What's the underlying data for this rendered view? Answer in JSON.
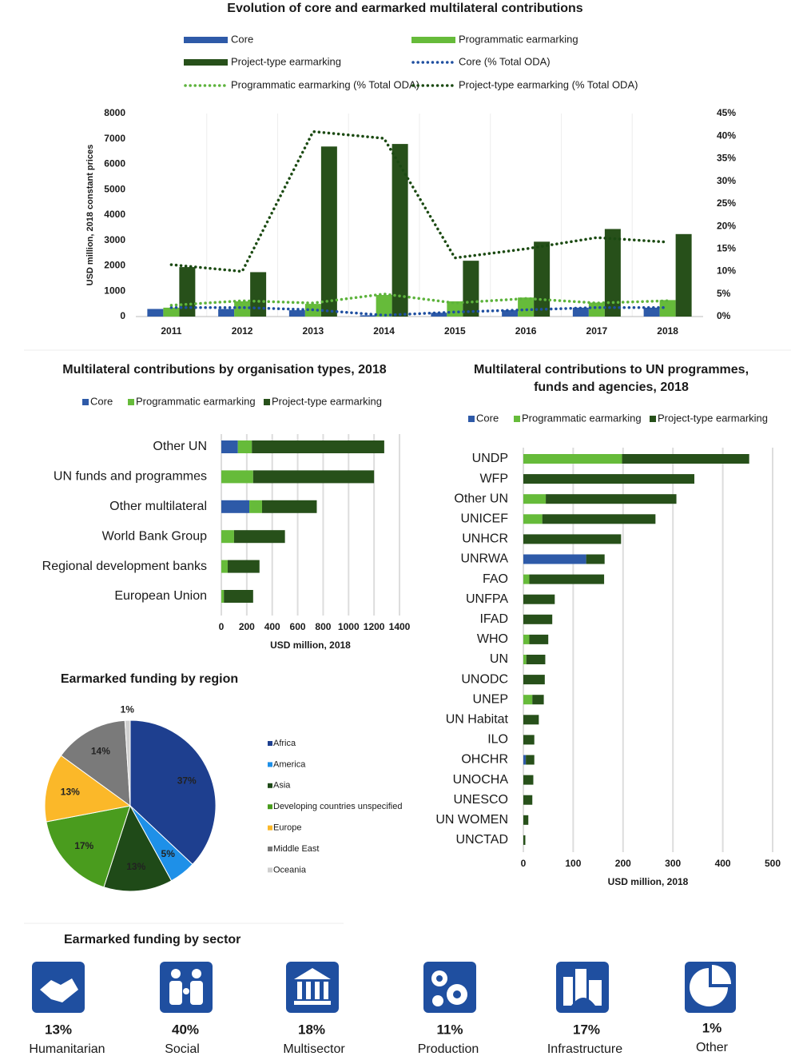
{
  "chart_data": [
    {
      "type": "bar",
      "title": "Evolution of core and earmarked multilateral contributions",
      "y_label": "USD million, 2018 constant prices",
      "categories": [
        "2011",
        "2012",
        "2013",
        "2014",
        "2015",
        "2016",
        "2017",
        "2018"
      ],
      "series": [
        {
          "name": "Core",
          "type": "bar",
          "color": "#2e5aa8",
          "values": [
            300,
            300,
            250,
            50,
            150,
            250,
            350,
            350
          ]
        },
        {
          "name": "Programmatic earmarking",
          "type": "bar",
          "color": "#66bb3a",
          "values": [
            350,
            600,
            500,
            850,
            600,
            750,
            550,
            650
          ]
        },
        {
          "name": "Project-type earmarking",
          "type": "bar",
          "color": "#27501a",
          "values": [
            1950,
            1750,
            6700,
            6800,
            2200,
            2950,
            3450,
            3250
          ]
        },
        {
          "name": "Core (% Total ODA)",
          "type": "line",
          "axis": "y2",
          "color": "#1f4fa0",
          "values": [
            2,
            2,
            1.5,
            0.3,
            1,
            1.5,
            2,
            2
          ]
        },
        {
          "name": "Programmatic earmarking (% Total ODA)",
          "type": "line",
          "axis": "y2",
          "color": "#5db33c",
          "values": [
            2.5,
            3.5,
            3,
            5,
            3,
            4,
            3,
            3.5
          ]
        },
        {
          "name": "Project-type earmarking (% Total ODA)",
          "type": "line",
          "axis": "y2",
          "color": "#1b4a12",
          "values": [
            11.5,
            10,
            41,
            39.5,
            13,
            15,
            17.5,
            16.5
          ]
        }
      ],
      "ylim": [
        0,
        8000
      ],
      "yticks": [
        0,
        1000,
        2000,
        3000,
        4000,
        5000,
        6000,
        7000,
        8000
      ],
      "y2lim": [
        0,
        45
      ],
      "y2ticks": [
        {
          "value": 0,
          "label": "0%"
        },
        {
          "value": 5,
          "label": "5%"
        },
        {
          "value": 10,
          "label": "10%"
        },
        {
          "value": 15,
          "label": "15%"
        },
        {
          "value": 20,
          "label": "20%"
        },
        {
          "value": 25,
          "label": "25%"
        },
        {
          "value": 30,
          "label": "30%"
        },
        {
          "value": 35,
          "label": "35%"
        },
        {
          "value": 40,
          "label": "40%"
        },
        {
          "value": 45,
          "label": "45%"
        }
      ],
      "grid": false
    },
    {
      "type": "stacked-barh",
      "title": "Multilateral contributions by organisation types, 2018",
      "x_label": "USD million, 2018",
      "categories": [
        "Other UN",
        "UN funds and programmes",
        "Other multilateral",
        "World Bank Group",
        "Regional development banks",
        "European Union"
      ],
      "series": [
        {
          "name": "Core",
          "color": "#2e5aa8",
          "values": [
            130,
            0,
            220,
            0,
            0,
            0
          ]
        },
        {
          "name": "Programmatic earmarking",
          "color": "#66bb3a",
          "values": [
            110,
            250,
            100,
            100,
            50,
            20
          ]
        },
        {
          "name": "Project-type earmarking",
          "color": "#27501a",
          "values": [
            1040,
            950,
            430,
            400,
            250,
            230
          ]
        }
      ],
      "xlim": [
        0,
        1400
      ],
      "xticks": [
        0,
        200,
        400,
        600,
        800,
        1000,
        1200,
        1400
      ],
      "grid": true
    },
    {
      "type": "stacked-barh",
      "title": [
        "Multilateral contributions to UN programmes,",
        "funds and agencies, 2018"
      ],
      "x_label": "USD million, 2018",
      "categories": [
        "UNDP",
        "WFP",
        "Other UN",
        "UNICEF",
        "UNHCR",
        "UNRWA",
        "FAO",
        "UNFPA",
        "IFAD",
        "WHO",
        "UN",
        "UNODC",
        "UNEP",
        "UN Habitat",
        "ILO",
        "OHCHR",
        "UNOCHA",
        "UNESCO",
        "UN WOMEN",
        "UNCTAD"
      ],
      "series": [
        {
          "name": "Core",
          "color": "#2e5aa8",
          "values": [
            0,
            0,
            0,
            0,
            0,
            126,
            0,
            0,
            0,
            0,
            0,
            0,
            0,
            0,
            0,
            5,
            0,
            0,
            0,
            0
          ]
        },
        {
          "name": "Programmatic earmarking",
          "color": "#66bb3a",
          "values": [
            198,
            0,
            45,
            38,
            0,
            0,
            12,
            0,
            0,
            12,
            6,
            0,
            18,
            0,
            0,
            0,
            0,
            0,
            0,
            0
          ]
        },
        {
          "name": "Project-type earmarking",
          "color": "#27501a",
          "values": [
            255,
            343,
            262,
            227,
            196,
            37,
            150,
            63,
            58,
            38,
            38,
            43,
            23,
            31,
            22,
            17,
            20,
            18,
            10,
            4
          ]
        }
      ],
      "xlim": [
        0,
        500
      ],
      "xticks": [
        0,
        100,
        200,
        300,
        400,
        500
      ],
      "grid": true
    },
    {
      "type": "pie",
      "title": "Earmarked funding by region",
      "categories": [
        "Africa",
        "America",
        "Asia",
        "Developing countries unspecified",
        "Europe",
        "Middle East",
        "Oceania"
      ],
      "values": [
        37,
        5,
        13,
        17,
        13,
        14,
        1
      ],
      "value_labels": [
        "37%",
        "5%",
        "13%",
        "17%",
        "13%",
        "14%",
        "1%"
      ],
      "colors": [
        "#1e3f8f",
        "#1e90e8",
        "#1f4a18",
        "#4a9c1e",
        "#fbb829",
        "#7a7a7a",
        "#cfcfcf"
      ]
    }
  ],
  "sectors": {
    "title": "Earmarked funding by sector",
    "items": [
      {
        "share": "13%",
        "label": "Humanitarian"
      },
      {
        "share": "40%",
        "label": "Social"
      },
      {
        "share": "18%",
        "label": "Multisector"
      },
      {
        "share": "11%",
        "label": "Production"
      },
      {
        "share": "17%",
        "label": "Infrastructure"
      },
      {
        "share": "1%",
        "label": "Other"
      }
    ]
  }
}
